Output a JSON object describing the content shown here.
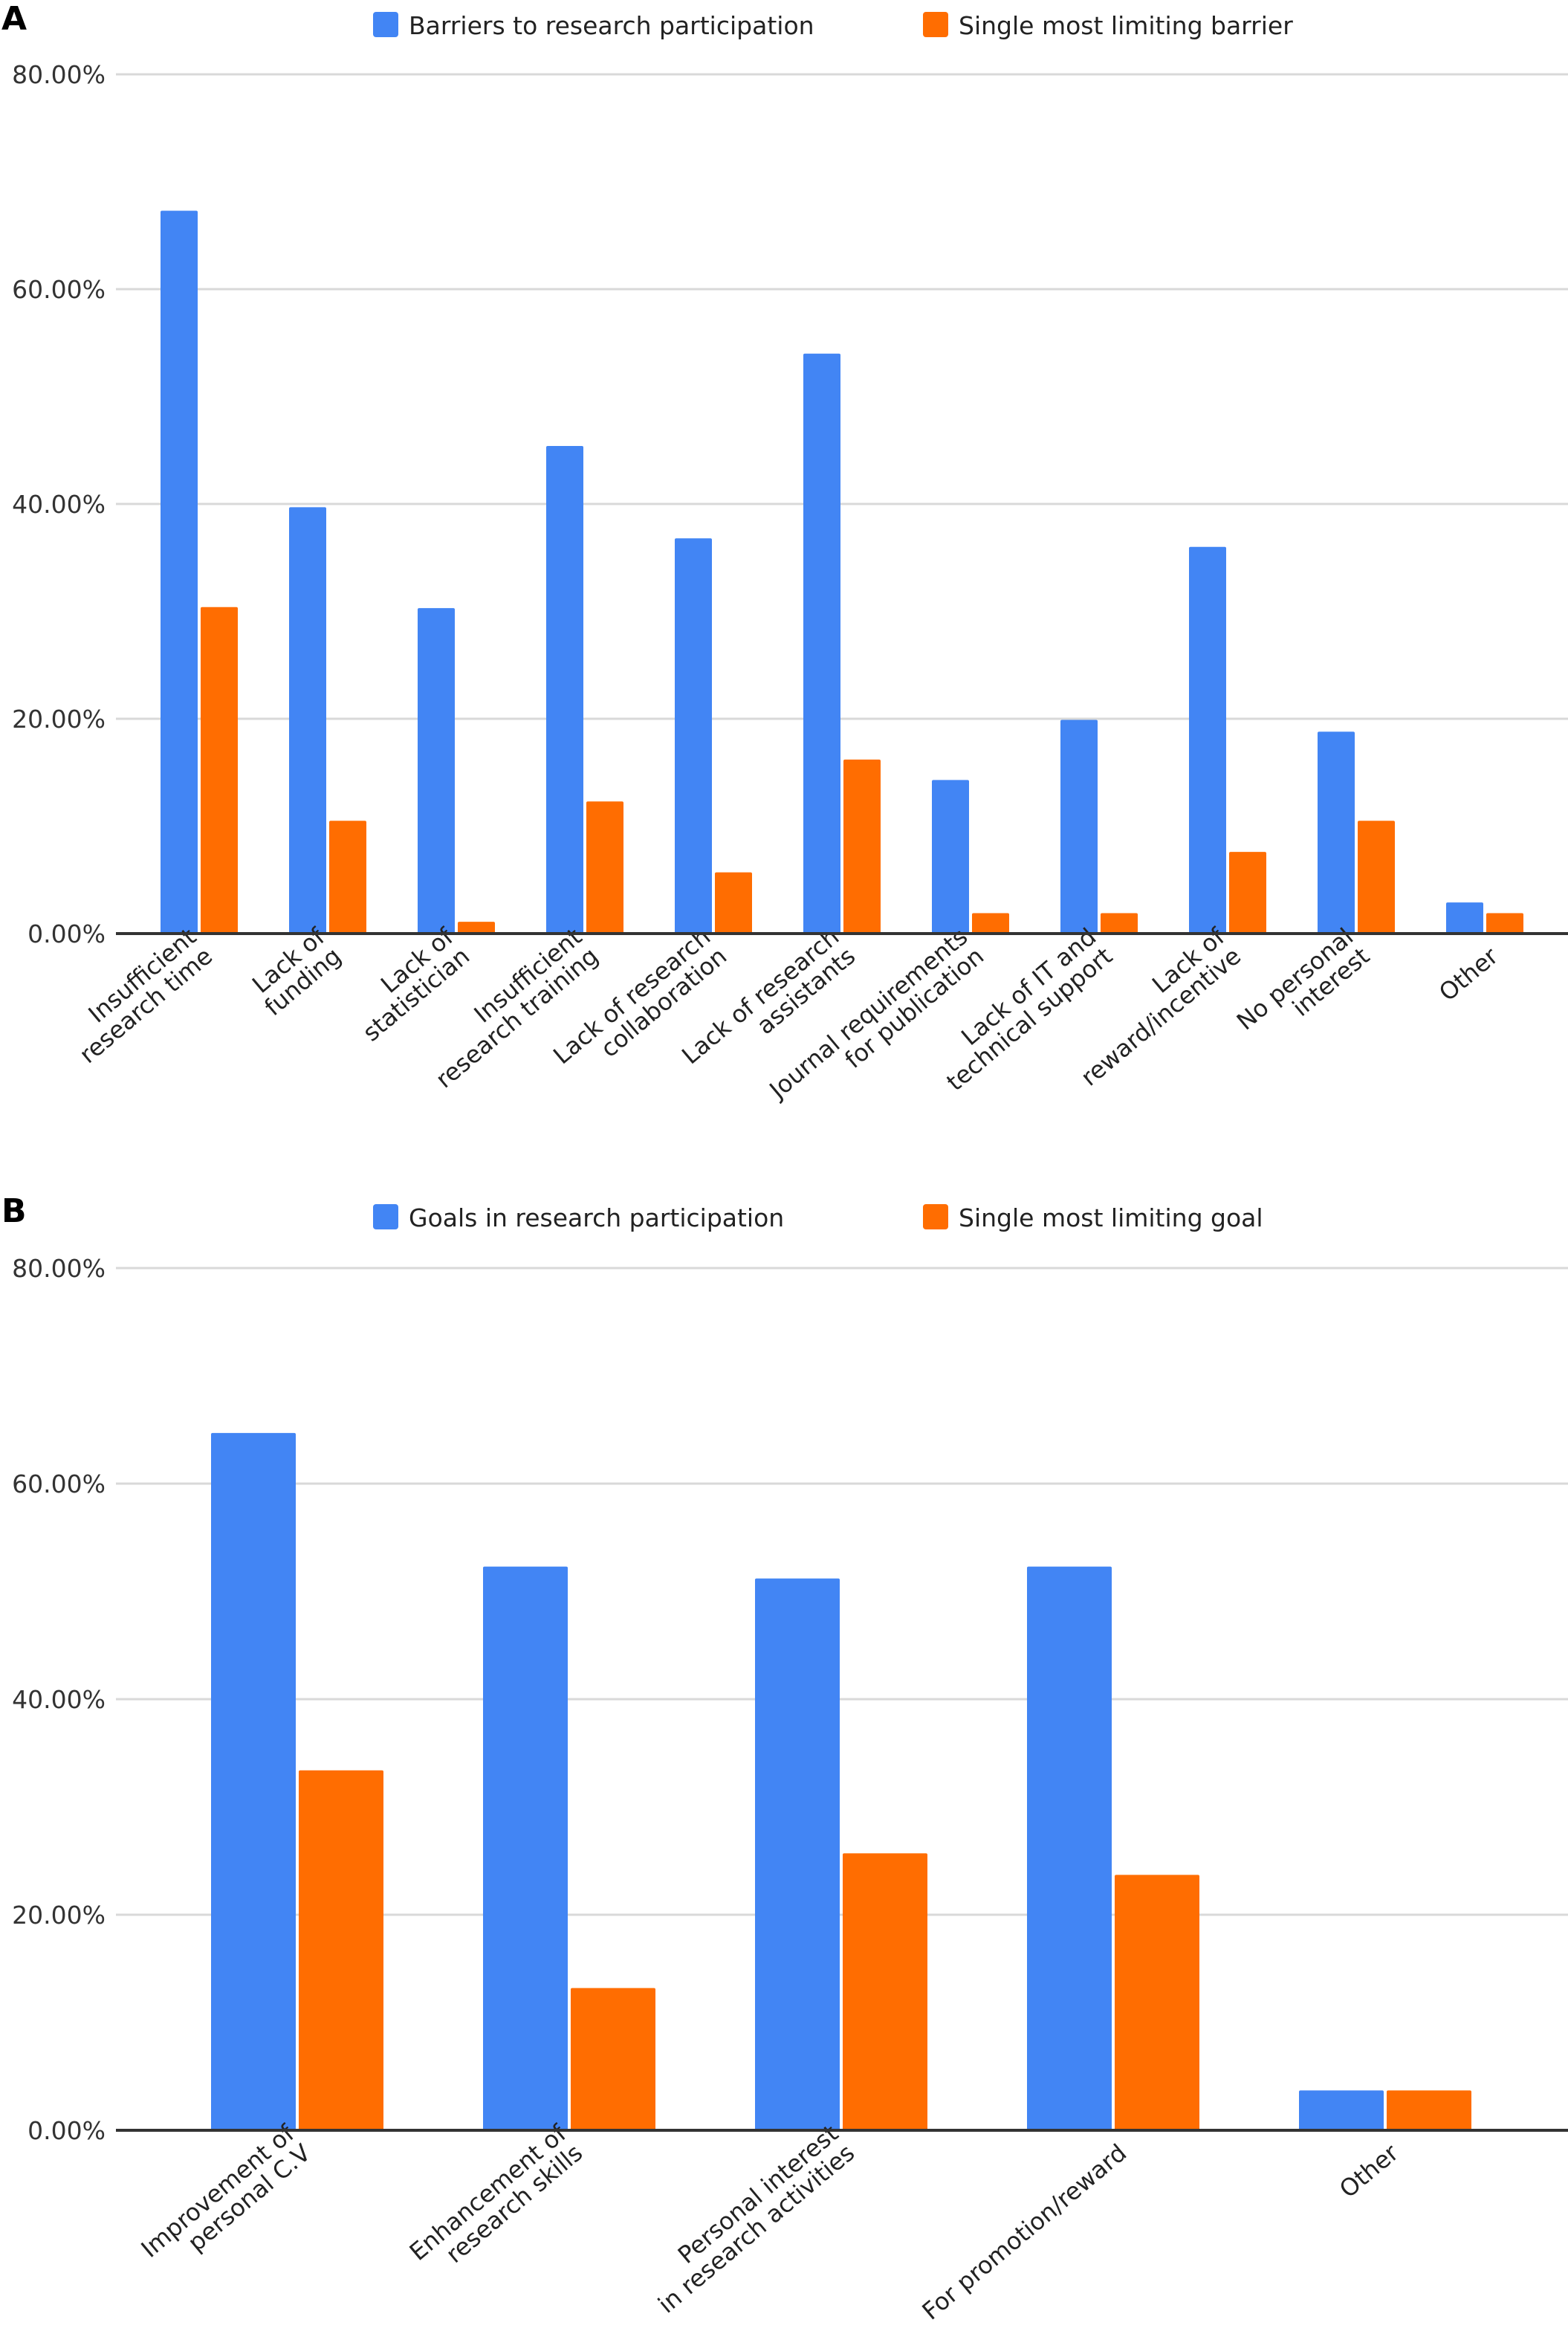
{
  "colors": {
    "blue": "#4285f4",
    "orange": "#ff6d01",
    "grid": "#d9d9d9",
    "axis": "#333333"
  },
  "chart_data": [
    {
      "panel": "A",
      "type": "bar",
      "ylim": [
        0,
        80
      ],
      "yticks": [
        "0.00%",
        "20.00%",
        "40.00%",
        "60.00%",
        "80.00%"
      ],
      "grid": true,
      "legend_position": "top",
      "categories": [
        "Insufficient\nresearch time",
        "Lack of\nfunding",
        "Lack of\nstatistician",
        "Insufficient\nresearch training",
        "Lack of research\ncollaboration",
        "Lack of research\nassistants",
        "Journal requirements\nfor publication",
        "Lack of IT and\ntechnical support",
        "Lack of\nreward/incentive",
        "No personal\ninterest",
        "Other"
      ],
      "series": [
        {
          "name": "Barriers to research participation",
          "color": "#4285f4",
          "values": [
            67.3,
            39.7,
            30.3,
            45.4,
            36.8,
            54.0,
            14.3,
            19.9,
            36.0,
            18.8,
            2.9
          ]
        },
        {
          "name": "Single most limiting barrier",
          "color": "#ff6d01",
          "values": [
            30.4,
            10.5,
            1.1,
            12.3,
            5.7,
            16.2,
            1.9,
            1.9,
            7.6,
            10.5,
            1.9
          ]
        }
      ]
    },
    {
      "panel": "B",
      "type": "bar",
      "ylim": [
        0,
        80
      ],
      "yticks": [
        "0.00%",
        "20.00%",
        "40.00%",
        "60.00%",
        "80.00%"
      ],
      "grid": true,
      "legend_position": "top",
      "categories": [
        "Improvement of\npersonal C.V",
        "Enhancement of\nresearch skills",
        "Personal interest\nin research activities",
        "For promotion/reward",
        "Other"
      ],
      "series": [
        {
          "name": "Goals in research participation",
          "color": "#4285f4",
          "values": [
            64.7,
            52.3,
            51.2,
            52.3,
            3.7
          ]
        },
        {
          "name": "Single most limiting goal",
          "color": "#ff6d01",
          "values": [
            33.4,
            13.2,
            25.7,
            23.7,
            3.7
          ]
        }
      ]
    }
  ]
}
